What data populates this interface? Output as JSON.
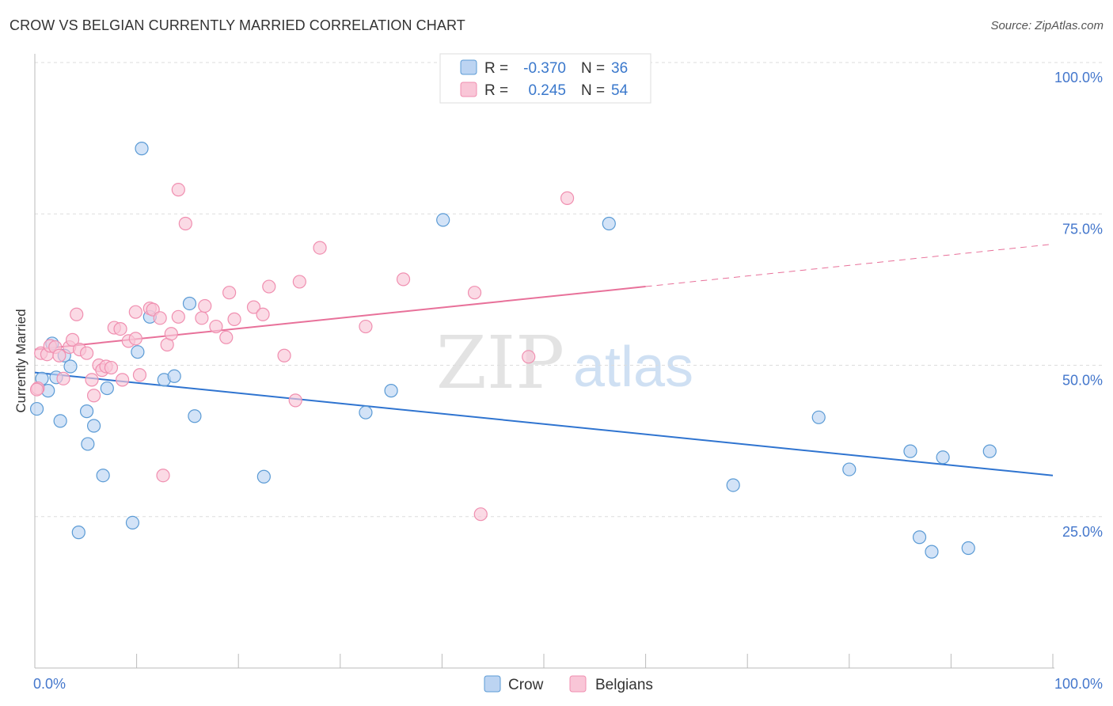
{
  "header": {
    "title": "CROW VS BELGIAN CURRENTLY MARRIED CORRELATION CHART",
    "source": "Source: ZipAtlas.com"
  },
  "watermark": {
    "zip": "ZIP",
    "atlas": "atlas"
  },
  "colors": {
    "crow": "#5b9bd5",
    "crow_fill": "#bcd4f2",
    "crow_line": "#2f74d0",
    "belgians": "#f08fb0",
    "belgians_fill": "#f9c6d7",
    "belgians_line": "#e8719a",
    "axis_text": "#4477cc",
    "grid": "#dddddd"
  },
  "legend_top": {
    "rows": [
      {
        "r_label": "R =",
        "r_value": "-0.370",
        "n_label": "N =",
        "n_value": "36"
      },
      {
        "r_label": "R =",
        "r_value": "0.245",
        "n_label": "N =",
        "n_value": "54"
      }
    ]
  },
  "legend_bottom": {
    "items": [
      {
        "label": "Crow"
      },
      {
        "label": "Belgians"
      }
    ]
  },
  "chart_data": {
    "type": "scatter",
    "title": "CROW VS BELGIAN CURRENTLY MARRIED CORRELATION CHART",
    "xlabel": "",
    "ylabel": "Currently Married",
    "xlim": [
      0,
      100
    ],
    "ylim": [
      0,
      100
    ],
    "x_tick_labels": [
      {
        "value": 0,
        "label": "0.0%"
      },
      {
        "value": 100,
        "label": "100.0%"
      }
    ],
    "y_tick_labels": [
      {
        "value": 25,
        "label": "25.0%"
      },
      {
        "value": 50,
        "label": "50.0%"
      },
      {
        "value": 75,
        "label": "75.0%"
      },
      {
        "value": 100,
        "label": "100.0%"
      }
    ],
    "legend_position": "bottom-center",
    "series": [
      {
        "name": "Crow",
        "r": -0.37,
        "n": 36,
        "trend": {
          "x0": 0,
          "y0": 48.8,
          "x1": 100,
          "y1": 31.8
        },
        "points": [
          [
            0.2,
            42.8
          ],
          [
            0.7,
            47.8
          ],
          [
            1.3,
            45.8
          ],
          [
            1.7,
            53.6
          ],
          [
            2.1,
            48.0
          ],
          [
            2.5,
            40.8
          ],
          [
            2.9,
            51.6
          ],
          [
            3.5,
            49.8
          ],
          [
            4.3,
            22.4
          ],
          [
            5.1,
            42.4
          ],
          [
            5.2,
            37.0
          ],
          [
            5.8,
            40.0
          ],
          [
            6.7,
            31.8
          ],
          [
            7.1,
            46.2
          ],
          [
            9.6,
            24.0
          ],
          [
            10.1,
            52.2
          ],
          [
            10.5,
            85.8
          ],
          [
            11.3,
            58.0
          ],
          [
            12.7,
            47.6
          ],
          [
            13.7,
            48.2
          ],
          [
            15.2,
            60.2
          ],
          [
            15.7,
            41.6
          ],
          [
            22.5,
            31.6
          ],
          [
            32.5,
            42.2
          ],
          [
            35.0,
            45.8
          ],
          [
            40.1,
            74.0
          ],
          [
            56.4,
            73.4
          ],
          [
            68.6,
            30.2
          ],
          [
            77.0,
            41.4
          ],
          [
            80.0,
            32.8
          ],
          [
            86.0,
            35.8
          ],
          [
            86.9,
            21.6
          ],
          [
            88.1,
            19.2
          ],
          [
            89.2,
            34.8
          ],
          [
            91.7,
            19.8
          ],
          [
            93.8,
            35.8
          ]
        ]
      },
      {
        "name": "Belgians",
        "r": 0.245,
        "n": 54,
        "trend": {
          "x0": 0,
          "y0": 52.6,
          "x1": 60,
          "y1": 63.0,
          "dashed_to_x": 100,
          "dashed_to_y": 70.0
        },
        "points": [
          [
            0.3,
            46.2
          ],
          [
            0.6,
            52.0
          ],
          [
            1.2,
            51.8
          ],
          [
            1.5,
            53.2
          ],
          [
            2.0,
            53.0
          ],
          [
            2.4,
            51.6
          ],
          [
            2.8,
            47.8
          ],
          [
            3.4,
            53.0
          ],
          [
            3.7,
            54.2
          ],
          [
            4.1,
            58.4
          ],
          [
            4.4,
            52.6
          ],
          [
            5.1,
            52.0
          ],
          [
            5.6,
            47.6
          ],
          [
            5.8,
            45.0
          ],
          [
            6.3,
            50.0
          ],
          [
            6.6,
            49.2
          ],
          [
            7.0,
            49.8
          ],
          [
            7.5,
            49.6
          ],
          [
            7.8,
            56.2
          ],
          [
            8.4,
            56.0
          ],
          [
            8.6,
            47.6
          ],
          [
            9.2,
            54.0
          ],
          [
            9.9,
            58.8
          ],
          [
            9.9,
            54.4
          ],
          [
            10.3,
            48.4
          ],
          [
            11.3,
            59.4
          ],
          [
            11.6,
            59.2
          ],
          [
            12.3,
            57.8
          ],
          [
            12.6,
            31.8
          ],
          [
            13.0,
            53.4
          ],
          [
            13.4,
            55.2
          ],
          [
            14.1,
            79.0
          ],
          [
            14.1,
            58.0
          ],
          [
            14.8,
            73.4
          ],
          [
            16.4,
            57.8
          ],
          [
            16.7,
            59.8
          ],
          [
            17.8,
            56.4
          ],
          [
            18.8,
            54.6
          ],
          [
            19.1,
            62.0
          ],
          [
            19.6,
            57.6
          ],
          [
            21.5,
            59.6
          ],
          [
            22.4,
            58.4
          ],
          [
            23.0,
            63.0
          ],
          [
            24.5,
            51.6
          ],
          [
            25.6,
            44.2
          ],
          [
            26.0,
            63.8
          ],
          [
            28.0,
            69.4
          ],
          [
            32.5,
            56.4
          ],
          [
            36.2,
            64.2
          ],
          [
            43.2,
            62.0
          ],
          [
            43.8,
            25.4
          ],
          [
            48.5,
            51.4
          ],
          [
            52.3,
            77.6
          ],
          [
            0.2,
            46.0
          ]
        ]
      }
    ]
  }
}
